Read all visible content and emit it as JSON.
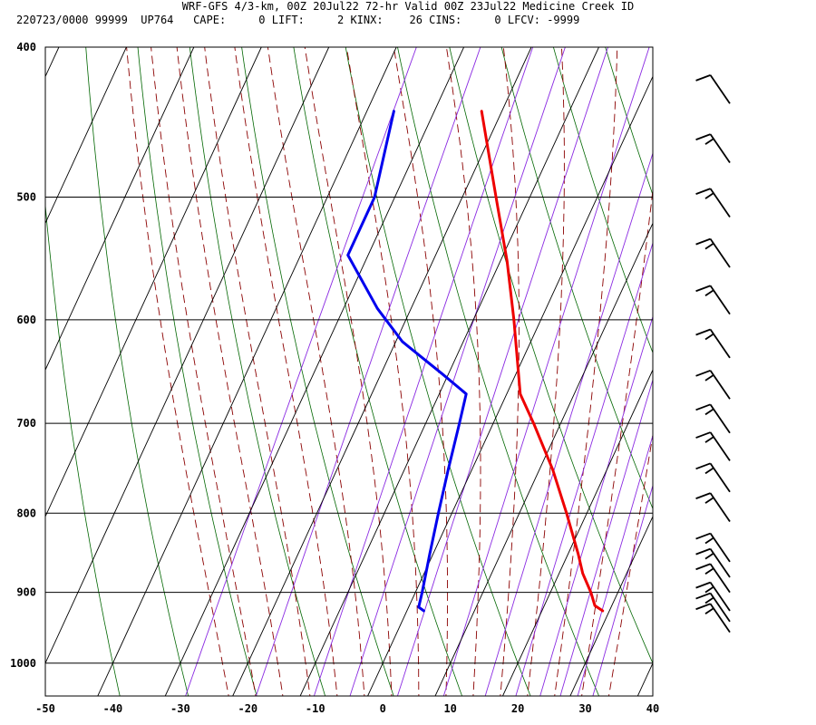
{
  "header": {
    "line1": "WRF-GFS 4/3-km, 00Z 20Jul22 72-hr Valid 00Z 23Jul22 Medicine Creek ID",
    "line2": "220723/0000 99999  UP764   CAPE:     0 LIFT:     2 KINX:    26 CINS:     0 LFCV: -9999"
  },
  "colors": {
    "temperature": "#ee0000",
    "dewpoint": "#0000ee",
    "isobar_isotherm": "#000000",
    "dry_adiabat": "#006600",
    "moist_adiabat": "#8b0000",
    "mixing_ratio": "#8b2be2",
    "wind_barb": "#000000"
  },
  "chart_data": {
    "type": "skew-t",
    "x_axis": {
      "unit": "°C",
      "range": [
        -50,
        40
      ],
      "ticks": [
        -50,
        -40,
        -30,
        -20,
        -10,
        0,
        10,
        20,
        30,
        40
      ]
    },
    "y_axis": {
      "unit": "hPa",
      "scale": "log",
      "range": [
        1050,
        400
      ],
      "ticks": [
        400,
        500,
        600,
        700,
        800,
        900,
        1000
      ]
    },
    "grid": true,
    "series": [
      {
        "kind": "temperature",
        "points": [
          {
            "p": 925,
            "t": 29
          },
          {
            "p": 918,
            "t": 27.5
          },
          {
            "p": 900,
            "t": 26
          },
          {
            "p": 875,
            "t": 23.5
          },
          {
            "p": 850,
            "t": 21.5
          },
          {
            "p": 800,
            "t": 17
          },
          {
            "p": 750,
            "t": 12
          },
          {
            "p": 700,
            "t": 6
          },
          {
            "p": 670,
            "t": 2
          },
          {
            "p": 600,
            "t": -4
          },
          {
            "p": 550,
            "t": -9
          },
          {
            "p": 500,
            "t": -15
          },
          {
            "p": 440,
            "t": -23
          }
        ]
      },
      {
        "kind": "dewpoint",
        "points": [
          {
            "p": 925,
            "t": 2.5
          },
          {
            "p": 920,
            "t": 1.5
          },
          {
            "p": 900,
            "t": 1
          },
          {
            "p": 850,
            "t": -0.5
          },
          {
            "p": 800,
            "t": -2
          },
          {
            "p": 750,
            "t": -3.5
          },
          {
            "p": 700,
            "t": -5
          },
          {
            "p": 670,
            "t": -6
          },
          {
            "p": 650,
            "t": -11
          },
          {
            "p": 620,
            "t": -19
          },
          {
            "p": 590,
            "t": -25
          },
          {
            "p": 545,
            "t": -33
          },
          {
            "p": 500,
            "t": -33
          },
          {
            "p": 440,
            "t": -36
          }
        ]
      }
    ],
    "wind_barbs": [
      {
        "p": 955,
        "speed_kt": 15
      },
      {
        "p": 940,
        "speed_kt": 15
      },
      {
        "p": 925,
        "speed_kt": 15
      },
      {
        "p": 900,
        "speed_kt": 15
      },
      {
        "p": 880,
        "speed_kt": 15
      },
      {
        "p": 860,
        "speed_kt": 15
      },
      {
        "p": 810,
        "speed_kt": 15
      },
      {
        "p": 775,
        "speed_kt": 15
      },
      {
        "p": 740,
        "speed_kt": 15
      },
      {
        "p": 710,
        "speed_kt": 15
      },
      {
        "p": 675,
        "speed_kt": 15
      },
      {
        "p": 635,
        "speed_kt": 15
      },
      {
        "p": 595,
        "speed_kt": 15
      },
      {
        "p": 555,
        "speed_kt": 15
      },
      {
        "p": 515,
        "speed_kt": 15
      },
      {
        "p": 475,
        "speed_kt": 15
      },
      {
        "p": 435,
        "speed_kt": 10
      }
    ]
  }
}
